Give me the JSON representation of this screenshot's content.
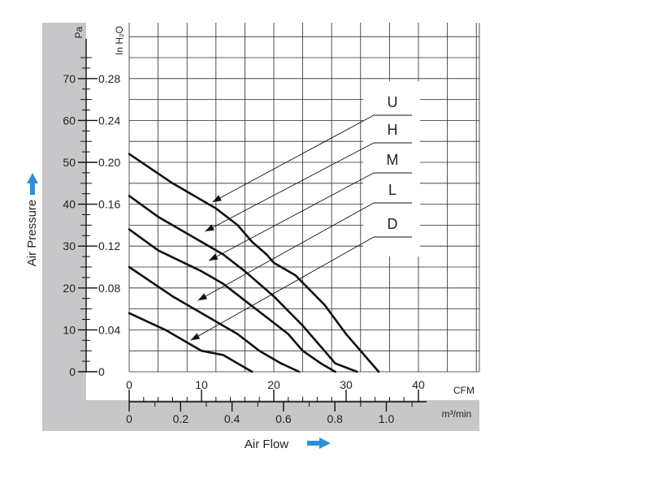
{
  "chart_data": {
    "type": "line",
    "xlabel": "Air Flow",
    "ylabel": "Air Pressure",
    "x_unit_primary": "CFM",
    "x_unit_secondary": "m³/min",
    "y_unit_primary": "Pa",
    "y_unit_secondary": "In H₂O",
    "xlim": [
      0,
      48
    ],
    "ylim": [
      0,
      84
    ],
    "x_ticks": [
      "0",
      "10",
      "20",
      "30",
      "40"
    ],
    "x2_ticks": [
      "0",
      "0.2",
      "0.4",
      "0.6",
      "0.8",
      "1.0"
    ],
    "y_ticks": [
      "0",
      "10",
      "20",
      "30",
      "40",
      "50",
      "60",
      "70"
    ],
    "y2_ticks": [
      "0",
      "0.04",
      "0.08",
      "0.12",
      "0.16",
      "0.20",
      "0.24",
      "0.28"
    ],
    "legend": [
      "U",
      "H",
      "M",
      "L",
      "D"
    ],
    "grid": true,
    "series": [
      {
        "name": "U",
        "x": [
          0,
          6,
          12,
          15,
          17,
          19,
          20,
          23,
          27,
          30,
          34.5
        ],
        "y": [
          52,
          45,
          39,
          35,
          31,
          28,
          26,
          23,
          16,
          9,
          0
        ]
      },
      {
        "name": "H",
        "x": [
          0,
          4,
          10,
          13,
          16,
          20,
          24,
          27,
          28.5,
          31.5
        ],
        "y": [
          42,
          37,
          31,
          28,
          24,
          18,
          11,
          5,
          2,
          0
        ]
      },
      {
        "name": "M",
        "x": [
          0,
          4,
          10,
          13,
          16,
          19,
          22,
          24,
          26.5,
          28.5
        ],
        "y": [
          34,
          29,
          24,
          21,
          17,
          13,
          9,
          5,
          2,
          0
        ]
      },
      {
        "name": "L",
        "x": [
          0,
          6,
          10,
          15,
          18,
          21,
          23.5
        ],
        "y": [
          25,
          18,
          14,
          9,
          5,
          2,
          0
        ]
      },
      {
        "name": "D",
        "x": [
          0,
          5,
          8,
          10,
          13,
          15,
          17
        ],
        "y": [
          14,
          10,
          7,
          5,
          4,
          2,
          0
        ]
      }
    ],
    "pointers": [
      {
        "series": "U",
        "x": 11.5,
        "y": 40.5
      },
      {
        "series": "H",
        "x": 10.5,
        "y": 33.5
      },
      {
        "series": "M",
        "x": 11,
        "y": 26.5
      },
      {
        "series": "L",
        "x": 9.5,
        "y": 17
      },
      {
        "series": "D",
        "x": 8.5,
        "y": 7.5
      }
    ]
  }
}
